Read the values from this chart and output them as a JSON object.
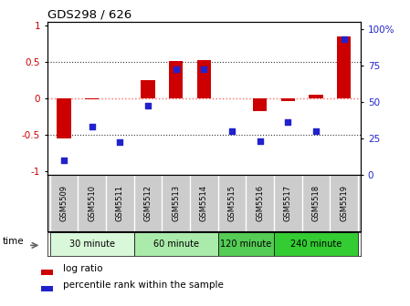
{
  "title": "GDS298 / 626",
  "samples": [
    "GSM5509",
    "GSM5510",
    "GSM5511",
    "GSM5512",
    "GSM5513",
    "GSM5514",
    "GSM5515",
    "GSM5516",
    "GSM5517",
    "GSM5518",
    "GSM5519"
  ],
  "log_ratio": [
    -0.56,
    -0.02,
    -0.01,
    0.25,
    0.51,
    0.52,
    -0.01,
    -0.18,
    -0.04,
    0.04,
    0.84
  ],
  "percentile": [
    10,
    33,
    22,
    47,
    72,
    72,
    30,
    23,
    36,
    30,
    93
  ],
  "bar_color": "#cc0000",
  "dot_color": "#2222cc",
  "time_groups": [
    {
      "label": "30 minute",
      "start": 0,
      "end": 2,
      "color": "#d9f7d9"
    },
    {
      "label": "60 minute",
      "start": 3,
      "end": 5,
      "color": "#aaeaaa"
    },
    {
      "label": "120 minute",
      "start": 6,
      "end": 7,
      "color": "#66dd66"
    },
    {
      "label": "240 minute",
      "start": 8,
      "end": 10,
      "color": "#33cc33"
    }
  ],
  "ylim_left": [
    -1.05,
    1.05
  ],
  "ylim_right": [
    0,
    105
  ],
  "yticks_left": [
    -1,
    -0.5,
    0,
    0.5,
    1
  ],
  "ytick_labels_left": [
    "-1",
    "-0.5",
    "0",
    "0.5",
    "1"
  ],
  "yticks_right": [
    0,
    25,
    50,
    75,
    100
  ],
  "ytick_labels_right": [
    "0",
    "25",
    "50",
    "75",
    "100%"
  ],
  "hline_zero_color": "#ff6666",
  "hline_other_color": "#333333",
  "plot_bg_color": "#ffffff",
  "sample_bg_color": "#cccccc",
  "legend_log_ratio": "log ratio",
  "legend_percentile": "percentile rank within the sample",
  "time_label": "time",
  "bar_width": 0.5
}
